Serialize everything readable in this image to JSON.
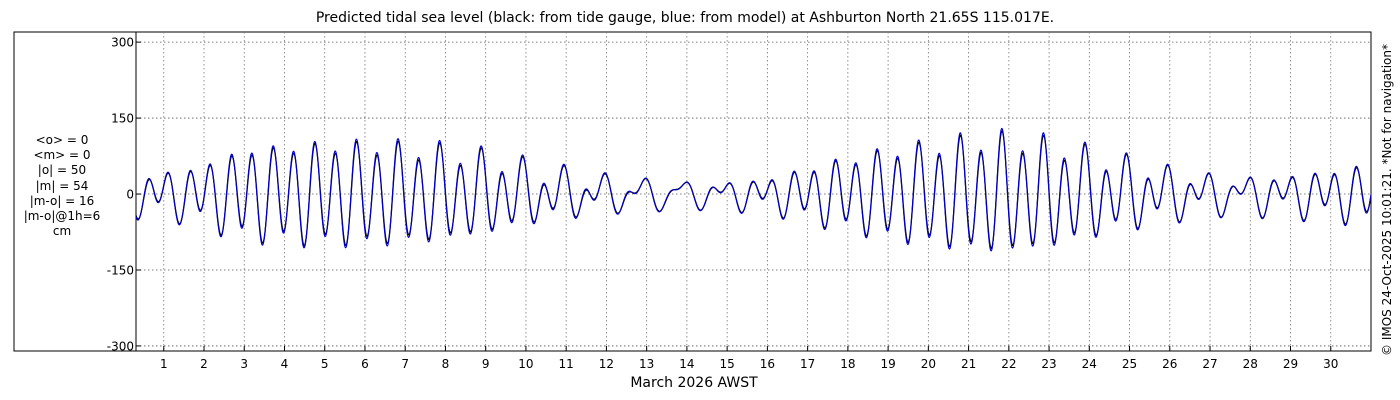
{
  "title": "Predicted tidal sea level (black: from tide gauge, blue: from model) at Ashburton North 21.65S 115.017E.",
  "stats": [
    "<o> = 0",
    "<m> = 0",
    "|o| = 50",
    "|m| = 54",
    "|m-o| = 16",
    "|m-o|@1h=6",
    "cm"
  ],
  "side_note": "© IMOS 24-Oct-2025 10:01:21. *Not for navigation*",
  "colors": {
    "gauge": "#000000",
    "model": "#0000cc",
    "grid": "#a0a0a0",
    "frame": "#000000"
  },
  "chart_data": {
    "type": "line",
    "title": "Predicted tidal sea level (black: from tide gauge, blue: from model) at Ashburton North 21.65S 115.017E.",
    "xlabel": "March 2026 AWST",
    "ylabel": "",
    "xlim": [
      0.31,
      31.0
    ],
    "ylim": [
      -310,
      320
    ],
    "yticks": [
      300,
      150,
      0,
      -150,
      -300
    ],
    "yticklabels": [
      "300",
      "150",
      "0",
      "-150",
      "-300"
    ],
    "xticks": [
      1,
      2,
      3,
      4,
      5,
      6,
      7,
      8,
      9,
      10,
      11,
      12,
      13,
      14,
      15,
      16,
      17,
      18,
      19,
      20,
      21,
      22,
      23,
      24,
      25,
      26,
      27,
      28,
      29,
      30
    ],
    "xticklabels": [
      "1",
      "2",
      "3",
      "4",
      "5",
      "6",
      "7",
      "8",
      "9",
      "10",
      "11",
      "12",
      "13",
      "14",
      "15",
      "16",
      "17",
      "18",
      "19",
      "20",
      "21",
      "22",
      "23",
      "24",
      "25",
      "26",
      "27",
      "28",
      "29",
      "30"
    ],
    "grid": true,
    "legend": "none",
    "series": [
      {
        "color": "#000000",
        "envelope_day": [
          0.31,
          1.5,
          3,
          4.5,
          6,
          7.5,
          9,
          10.5,
          12,
          13.5,
          14.5,
          16,
          17.5,
          19,
          20.5,
          21.8,
          23,
          24.5,
          26,
          27.5,
          29,
          31
        ],
        "envelope_semidiurnal_amp": [
          30,
          40,
          80,
          90,
          92,
          85,
          70,
          40,
          20,
          10,
          12,
          25,
          55,
          80,
          95,
          105,
          95,
          65,
          38,
          20,
          30,
          50
        ],
        "envelope_diurnal_amp": [
          20,
          20,
          15,
          15,
          15,
          20,
          20,
          25,
          25,
          25,
          20,
          15,
          15,
          15,
          20,
          20,
          20,
          25,
          25,
          25,
          20,
          15
        ]
      },
      {
        "color": "#0000cc",
        "envelope_day": [
          0.31,
          1.5,
          3,
          4.5,
          6,
          7.5,
          9,
          10.5,
          12,
          13.5,
          14.5,
          16,
          17.5,
          19,
          20.5,
          21.8,
          23,
          24.5,
          26,
          27.5,
          29,
          31
        ],
        "envelope_semidiurnal_amp": [
          32,
          42,
          84,
          94,
          97,
          90,
          74,
          43,
          22,
          11,
          13,
          27,
          58,
          84,
          100,
          110,
          100,
          68,
          40,
          21,
          32,
          53
        ],
        "envelope_diurnal_amp": [
          20,
          20,
          15,
          15,
          15,
          20,
          20,
          25,
          25,
          25,
          20,
          15,
          15,
          15,
          20,
          20,
          20,
          25,
          25,
          25,
          20,
          15
        ]
      }
    ]
  }
}
